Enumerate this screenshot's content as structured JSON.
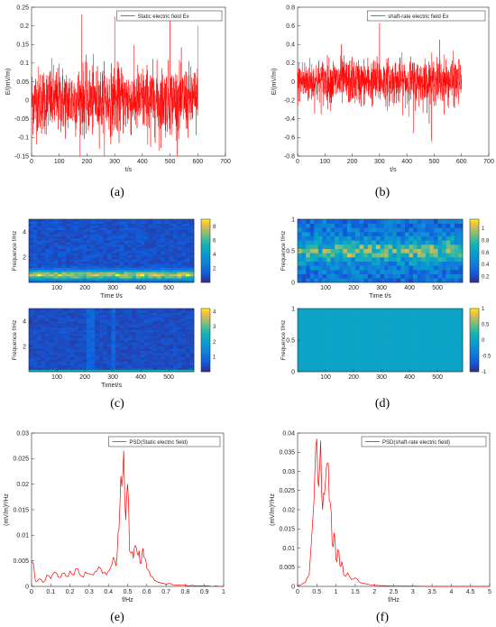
{
  "chart_data": [
    {
      "panel": "a",
      "type": "line",
      "ylabel": "E/(mV/m)",
      "xlabel": "t/s",
      "xlim": [
        0,
        700
      ],
      "ylim": [
        -0.15,
        0.25
      ],
      "xticks": [
        0,
        100,
        200,
        300,
        400,
        500,
        600,
        700
      ],
      "yticks": [
        -0.15,
        -0.1,
        -0.05,
        0,
        0.05,
        0.1,
        0.15,
        0.2,
        0.25
      ],
      "ytick_labels": [
        "-0.15",
        "-0.1",
        "-0.05",
        "0",
        "0.05",
        "0.1",
        "0.15",
        "0.2",
        "0.25"
      ],
      "legend": "Static electric field Ex",
      "legend_position": "top-right",
      "series": [
        {
          "name": "Static electric field Ex",
          "color": "#ff0000",
          "t_range": [
            0,
            600
          ],
          "mean": 0.0,
          "noise_std": 0.045,
          "peaks": [
            [
              180,
              0.23
            ],
            [
              300,
              0.225
            ],
            [
              500,
              0.215
            ],
            [
              460,
              -0.135
            ],
            [
              430,
              -0.125
            ],
            [
              600,
              0.2
            ]
          ]
        }
      ],
      "grid": false
    },
    {
      "panel": "b",
      "type": "line",
      "ylabel": "E/(mV/m)",
      "xlabel": "t/s",
      "xlim": [
        0,
        700
      ],
      "ylim": [
        -0.8,
        0.8
      ],
      "xticks": [
        0,
        100,
        200,
        300,
        400,
        500,
        600,
        700
      ],
      "yticks": [
        -0.8,
        -0.6,
        -0.4,
        -0.2,
        0,
        0.2,
        0.4,
        0.6,
        0.8
      ],
      "ytick_labels": [
        "-0.8",
        "-0.6",
        "-0.4",
        "-0.2",
        "0",
        "0.2",
        "0.4",
        "0.6",
        "0.8"
      ],
      "legend": "shaft-rate electric field Ex",
      "legend_position": "top-right",
      "series": [
        {
          "name": "shaft-rate electric field Ex",
          "color": "#ff0000",
          "t_range": [
            0,
            600
          ],
          "mean": 0.0,
          "noise_std": 0.12,
          "peaks": [
            [
              300,
              0.63
            ],
            [
              490,
              -0.64
            ],
            [
              160,
              0.4
            ],
            [
              425,
              -0.55
            ],
            [
              520,
              0.45
            ]
          ]
        }
      ],
      "grid": false
    },
    {
      "panel": "c-top",
      "type": "heatmap",
      "ylabel": "Frequence f/Hz",
      "xlabel": "Time t/s",
      "xlim": [
        0,
        590
      ],
      "ylim": [
        0,
        5
      ],
      "xticks": [
        100,
        200,
        300,
        400,
        500
      ],
      "yticks": [
        2,
        4
      ],
      "colorbar_ticks": [
        2,
        4,
        6,
        8
      ],
      "colorbar_range": [
        0,
        9
      ],
      "band_hz": 0.5,
      "colormap": "parula"
    },
    {
      "panel": "c-bottom",
      "type": "heatmap",
      "ylabel": "Frequence f/Hz",
      "xlabel": "Timet/s",
      "xlim": [
        0,
        590
      ],
      "ylim": [
        0,
        5
      ],
      "xticks": [
        100,
        200,
        300,
        400,
        500
      ],
      "yticks": [
        2,
        4
      ],
      "colorbar_ticks": [
        1,
        2,
        3,
        4
      ],
      "colorbar_range": [
        0,
        4.2
      ],
      "colormap": "parula"
    },
    {
      "panel": "d-top",
      "type": "heatmap",
      "ylabel": "Frequence f/Hz",
      "xlabel": "Time t/s",
      "xlim": [
        0,
        590
      ],
      "ylim": [
        0,
        1
      ],
      "xticks": [
        100,
        200,
        300,
        400,
        500
      ],
      "yticks": [
        0,
        0.5,
        1
      ],
      "colorbar_ticks": [
        0.2,
        0.4,
        0.6,
        0.8,
        1
      ],
      "colorbar_range": [
        0.1,
        1.15
      ],
      "band_hz": 0.5,
      "colormap": "parula"
    },
    {
      "panel": "d-bottom",
      "type": "heatmap",
      "ylabel": "Frequence f/Hz",
      "xlabel": "",
      "xlim": [
        0,
        590
      ],
      "ylim": [
        0,
        1
      ],
      "xticks": [
        100,
        200,
        300,
        400,
        500
      ],
      "yticks": [
        0,
        0.5,
        1
      ],
      "colorbar_ticks": [
        -1,
        -0.5,
        0,
        0.5,
        1
      ],
      "colorbar_range": [
        -1,
        1
      ],
      "uniform_value": 0,
      "colormap": "parula"
    },
    {
      "panel": "e",
      "type": "line",
      "ylabel": "(mV/m)²/Hz",
      "xlabel": "f/Hz",
      "xlim": [
        0,
        1
      ],
      "ylim": [
        0,
        0.03
      ],
      "xticks": [
        0,
        0.1,
        0.2,
        0.3,
        0.4,
        0.5,
        0.6,
        0.7,
        0.8,
        0.9,
        1
      ],
      "yticks": [
        0,
        0.005,
        0.01,
        0.015,
        0.02,
        0.025,
        0.03
      ],
      "ytick_labels": [
        "0",
        "0.005",
        "0.01",
        "0.015",
        "0.02",
        "0.025",
        "0.03"
      ],
      "legend": "PSD(Static electric field)",
      "legend_position": "top-right",
      "series": [
        {
          "name": "PSD(Static electric field)",
          "color": "#ff0000",
          "x": [
            0,
            0.01,
            0.02,
            0.04,
            0.06,
            0.08,
            0.1,
            0.12,
            0.14,
            0.16,
            0.18,
            0.2,
            0.22,
            0.24,
            0.26,
            0.28,
            0.3,
            0.32,
            0.34,
            0.36,
            0.38,
            0.4,
            0.42,
            0.43,
            0.44,
            0.45,
            0.46,
            0.47,
            0.48,
            0.49,
            0.5,
            0.51,
            0.52,
            0.53,
            0.54,
            0.55,
            0.56,
            0.57,
            0.58,
            0.59,
            0.6,
            0.62,
            0.64,
            0.66,
            0.68,
            0.7,
            0.72,
            0.74,
            0.76,
            0.78,
            0.8,
            0.82,
            0.84,
            0.86,
            0.88,
            0.9,
            0.92,
            0.94,
            0.96,
            0.98,
            1.0
          ],
          "y": [
            0.005,
            0.0045,
            0.001,
            0.0015,
            0.0008,
            0.0022,
            0.0015,
            0.0028,
            0.0018,
            0.0025,
            0.002,
            0.003,
            0.0022,
            0.0035,
            0.002,
            0.0028,
            0.0025,
            0.0022,
            0.003,
            0.0035,
            0.0028,
            0.003,
            0.0045,
            0.0055,
            0.004,
            0.0105,
            0.016,
            0.0195,
            0.0265,
            0.013,
            0.02,
            0.007,
            0.0065,
            0.0055,
            0.008,
            0.0065,
            0.007,
            0.0045,
            0.0075,
            0.0055,
            0.0035,
            0.002,
            0.0012,
            0.0008,
            0.0006,
            0.0004,
            0.0006,
            0.0003,
            0.0002,
            0.0003,
            0.0002,
            0.0001,
            0.0002,
            0.0001,
            0.0001,
            0.0001,
            0.0001,
            0.0,
            0.0001,
            0.0,
            0.0
          ]
        }
      ],
      "grid": false
    },
    {
      "panel": "f",
      "type": "line",
      "ylabel": "(mV/m)²/Hz",
      "xlabel": "f/Hz",
      "xlim": [
        0,
        5
      ],
      "ylim": [
        0,
        0.04
      ],
      "xticks": [
        0,
        0.5,
        1,
        1.5,
        2,
        2.5,
        3,
        3.5,
        4,
        4.5,
        5
      ],
      "yticks": [
        0,
        0.005,
        0.01,
        0.015,
        0.02,
        0.025,
        0.03,
        0.035,
        0.04
      ],
      "ytick_labels": [
        "0",
        "0.005",
        "0.01",
        "0.015",
        "0.02",
        "0.025",
        "0.03",
        "0.035",
        "0.04"
      ],
      "legend": "PSD(shaft-rate electric field)",
      "legend_position": "top-right",
      "series": [
        {
          "name": "PSD(shaft-rate electric field)",
          "color": "#ff0000",
          "x": [
            0,
            0.1,
            0.2,
            0.3,
            0.4,
            0.45,
            0.5,
            0.55,
            0.6,
            0.65,
            0.7,
            0.75,
            0.8,
            0.85,
            0.9,
            0.95,
            1.0,
            1.05,
            1.1,
            1.15,
            1.2,
            1.3,
            1.4,
            1.5,
            1.6,
            1.7,
            1.8,
            1.9,
            2.0,
            2.2,
            2.5,
            3.0,
            3.5,
            4.0,
            4.5,
            5.0
          ],
          "y": [
            0.0002,
            0.0005,
            0.001,
            0.003,
            0.018,
            0.03,
            0.0385,
            0.026,
            0.038,
            0.02,
            0.024,
            0.031,
            0.032,
            0.022,
            0.011,
            0.014,
            0.007,
            0.0095,
            0.0055,
            0.0065,
            0.003,
            0.0035,
            0.0018,
            0.0022,
            0.0012,
            0.0008,
            0.0006,
            0.0004,
            0.0003,
            0.0002,
            0.0001,
            0.0001,
            0.0,
            0.0,
            0.0,
            0.0
          ]
        }
      ],
      "grid": false
    }
  ],
  "panel_labels": [
    "(a)",
    "(b)",
    "(c)",
    "(d)",
    "(e)",
    "(f)"
  ]
}
